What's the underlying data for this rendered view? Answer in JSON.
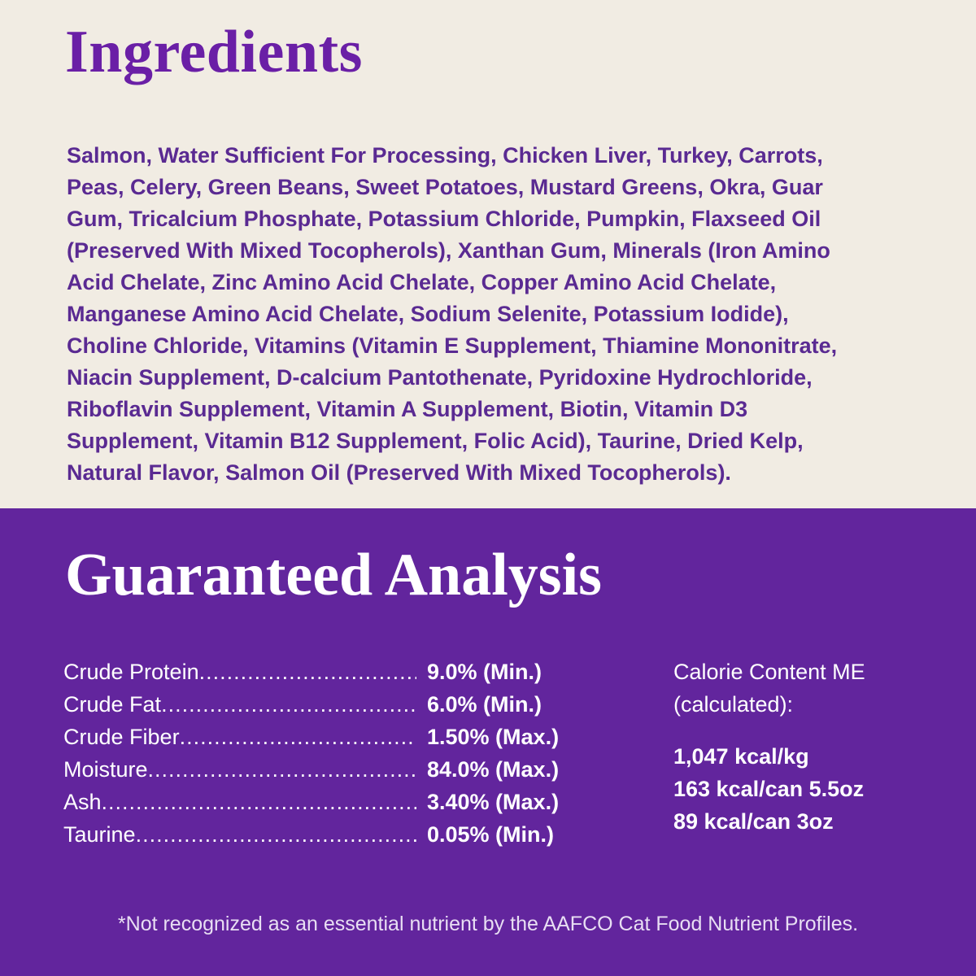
{
  "colors": {
    "cream": "#f1ece3",
    "purple_bg": "#62259d",
    "title_purple": "#6a1fa6",
    "text_purple": "#5a2a92"
  },
  "ingredients": {
    "title": "Ingredients",
    "lines": [
      "Salmon, Water Sufficient For Processing, Chicken Liver, Turkey, Carrots,",
      "Peas, Celery, Green Beans, Sweet Potatoes, Mustard Greens, Okra, Guar",
      "Gum, Tricalcium Phosphate, Potassium Chloride, Pumpkin, Flaxseed Oil",
      "(Preserved With Mixed Tocopherols), Xanthan Gum, Minerals (Iron Amino",
      "Acid Chelate, Zinc Amino Acid Chelate, Copper Amino Acid Chelate,",
      "Manganese Amino Acid Chelate, Sodium Selenite, Potassium Iodide),",
      "Choline Chloride, Vitamins (Vitamin E Supplement, Thiamine Mononitrate,",
      "Niacin Supplement, D-calcium Pantothenate, Pyridoxine Hydrochloride,",
      "Riboflavin Supplement, Vitamin A Supplement, Biotin, Vitamin D3",
      "Supplement, Vitamin B12 Supplement, Folic Acid), Taurine, Dried Kelp,",
      "Natural Flavor, Salmon Oil (Preserved With Mixed Tocopherols)."
    ]
  },
  "analysis": {
    "title": "Guaranteed Analysis",
    "rows": [
      {
        "label": "Crude Protein",
        "value": "9.0% (Min.)"
      },
      {
        "label": "Crude Fat",
        "value": "6.0% (Min.)"
      },
      {
        "label": "Crude Fiber",
        "value": "1.50% (Max.)"
      },
      {
        "label": "Moisture",
        "value": "84.0% (Max.)"
      },
      {
        "label": "Ash",
        "value": "3.40% (Max.)"
      },
      {
        "label": "Taurine",
        "value": "0.05% (Min.)"
      }
    ],
    "calorie": {
      "heading_1": "Calorie Content ME",
      "heading_2": "(calculated):",
      "values": [
        "1,047 kcal/kg",
        "163 kcal/can 5.5oz",
        "89 kcal/can 3oz"
      ]
    },
    "footnote": "*Not recognized as an essential nutrient by the AAFCO Cat Food Nutrient Profiles."
  }
}
